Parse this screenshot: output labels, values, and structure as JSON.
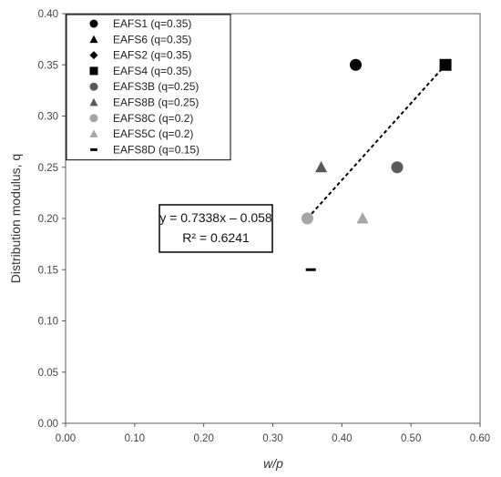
{
  "chart_data": {
    "type": "scatter",
    "title": "",
    "xlabel": "w/p",
    "ylabel": "Distribution modulus, q",
    "xlim": [
      0,
      0.6
    ],
    "ylim": [
      0,
      0.4
    ],
    "x_ticks": [
      "0.00",
      "0.10",
      "0.20",
      "0.30",
      "0.40",
      "0.50",
      "0.60"
    ],
    "y_ticks": [
      "0.00",
      "0.05",
      "0.10",
      "0.15",
      "0.20",
      "0.25",
      "0.30",
      "0.35",
      "0.40"
    ],
    "x_tick_values": [
      0,
      0.1,
      0.2,
      0.3,
      0.4,
      0.5,
      0.6
    ],
    "y_tick_values": [
      0,
      0.05,
      0.1,
      0.15,
      0.2,
      0.25,
      0.3,
      0.35,
      0.4
    ],
    "grid": false,
    "legend_position": "top-left",
    "series": [
      {
        "name": "EAFS1 (q=0.35)",
        "marker": "circle",
        "color": "#000000",
        "x": [
          0.42
        ],
        "y": [
          0.35
        ]
      },
      {
        "name": "EAFS6 (q=0.35)",
        "marker": "triangle",
        "color": "#000000",
        "x": [],
        "y": []
      },
      {
        "name": "EAFS2 (q=0.35)",
        "marker": "diamond",
        "color": "#000000",
        "x": [],
        "y": []
      },
      {
        "name": "EAFS4 (q=0.35)",
        "marker": "square",
        "color": "#000000",
        "x": [
          0.55
        ],
        "y": [
          0.35
        ]
      },
      {
        "name": "EAFS3B (q=0.25)",
        "marker": "circle",
        "color": "#595959",
        "x": [
          0.48
        ],
        "y": [
          0.25
        ]
      },
      {
        "name": "EAFS8B (q=0.25)",
        "marker": "triangle",
        "color": "#595959",
        "x": [
          0.37
        ],
        "y": [
          0.25
        ]
      },
      {
        "name": "EAFS8C (q=0.2)",
        "marker": "circle",
        "color": "#a6a6a6",
        "x": [
          0.35
        ],
        "y": [
          0.2
        ]
      },
      {
        "name": "EAFS5C (q=0.2)",
        "marker": "triangle",
        "color": "#a6a6a6",
        "x": [
          0.43
        ],
        "y": [
          0.2
        ]
      },
      {
        "name": "EAFS8D (q=0.15)",
        "marker": "dash",
        "color": "#000000",
        "x": [
          0.355
        ],
        "y": [
          0.15
        ]
      }
    ],
    "trendline": {
      "style": "dashed",
      "color": "#000000",
      "x": [
        0.35,
        0.55
      ],
      "y": [
        0.2,
        0.35
      ],
      "equation": "y = 0.7338x – 0.058",
      "r_squared": "R² = 0.6241"
    }
  }
}
